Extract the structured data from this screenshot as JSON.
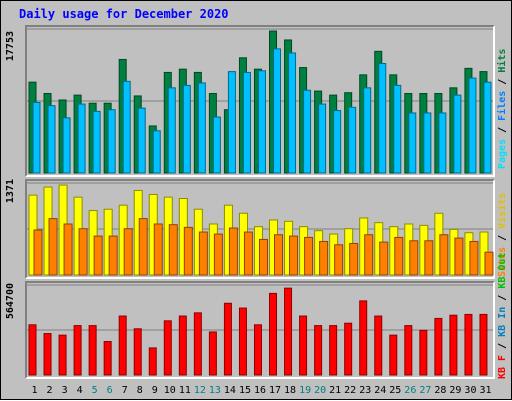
{
  "colors": {
    "background": "#c0c0c0",
    "title": "#0000ff",
    "hits": "#008040",
    "files": "#00c0ff",
    "pages": "#00e0ff",
    "visits": "#ffff00",
    "sites": "#ff8000",
    "kbytes": "#ff0000",
    "kb_in": "#0080c0",
    "kb_out": "#00c000",
    "weekend_label": "#008080",
    "weekday_label": "#000000"
  },
  "chart_data": {
    "type": "bar",
    "title": "Daily usage for December 2020",
    "categories": [
      "1",
      "2",
      "3",
      "4",
      "5",
      "6",
      "7",
      "8",
      "9",
      "10",
      "11",
      "12",
      "13",
      "14",
      "15",
      "16",
      "17",
      "18",
      "19",
      "20",
      "21",
      "22",
      "23",
      "24",
      "25",
      "26",
      "27",
      "28",
      "29",
      "30",
      "31"
    ],
    "weekend_days": [
      "5",
      "6",
      "12",
      "13",
      "19",
      "20",
      "26",
      "27"
    ],
    "panels": [
      {
        "ylabel": "17753",
        "ymax": 17753,
        "legend": [
          "Hits",
          "Files",
          "Pages"
        ],
        "series": [
          {
            "name": "Hits",
            "color": "#008040",
            "values": [
              11200,
              9800,
              9000,
              9600,
              8600,
              8600,
              14000,
              9500,
              5800,
              12400,
              12800,
              12400,
              9800,
              7800,
              14200,
              12800,
              17500,
              16400,
              13000,
              10100,
              9600,
              9900,
              12100,
              15000,
              12100,
              9800,
              9800,
              9800,
              10500,
              12900,
              12500
            ]
          },
          {
            "name": "Files",
            "color": "#00c0ff",
            "values": [
              8700,
              8300,
              6800,
              8500,
              7600,
              7800,
              11300,
              8000,
              5200,
              10500,
              10800,
              11100,
              6900,
              12500,
              12400,
              12600,
              15300,
              14800,
              10200,
              8500,
              7700,
              8100,
              10500,
              13500,
              10800,
              7400,
              7400,
              7400,
              9600,
              11700,
              11200
            ]
          },
          {
            "name": "Pages",
            "color": "#00e0ff",
            "values": [
              0,
              0,
              0,
              0,
              0,
              0,
              0,
              0,
              0,
              0,
              0,
              0,
              0,
              0,
              0,
              0,
              0,
              0,
              0,
              0,
              0,
              0,
              0,
              0,
              0,
              0,
              0,
              0,
              0,
              0,
              0
            ]
          }
        ]
      },
      {
        "ylabel": "1371",
        "ymax": 1371,
        "legend": [
          "Visits",
          "Sites"
        ],
        "series": [
          {
            "name": "Visits",
            "color": "#ffff00",
            "values": [
              1190,
              1310,
              1340,
              1160,
              960,
              980,
              1040,
              1260,
              1200,
              1160,
              1140,
              980,
              760,
              1040,
              920,
              720,
              820,
              800,
              720,
              660,
              610,
              690,
              850,
              780,
              720,
              760,
              740,
              920,
              680,
              630,
              640
            ]
          },
          {
            "name": "Sites",
            "color": "#ff8000",
            "values": [
              670,
              840,
              760,
              690,
              580,
              580,
              690,
              840,
              760,
              750,
              710,
              640,
              610,
              700,
              640,
              530,
              600,
              580,
              560,
              500,
              450,
              470,
              600,
              490,
              560,
              510,
              510,
              600,
              550,
              500,
              340
            ]
          }
        ]
      },
      {
        "ylabel": "564700",
        "ymax": 564700,
        "legend": [
          "KBytes",
          "KB In",
          "KB Out"
        ],
        "series": [
          {
            "name": "KBytes",
            "color": "#ff0000",
            "values": [
              315000,
              260000,
              250000,
              310000,
              310000,
              210000,
              370000,
              290000,
              170000,
              340000,
              370000,
              390000,
              270000,
              450000,
              420000,
              315000,
              512000,
              545000,
              370000,
              310000,
              310000,
              325000,
              465000,
              370000,
              250000,
              310000,
              280000,
              355000,
              375000,
              380000,
              380000
            ]
          },
          {
            "name": "KB In",
            "color": "#0080c0",
            "values": [
              0,
              0,
              0,
              0,
              0,
              0,
              0,
              0,
              0,
              0,
              0,
              0,
              0,
              0,
              0,
              0,
              0,
              0,
              0,
              0,
              0,
              0,
              0,
              0,
              0,
              0,
              0,
              0,
              0,
              0,
              0
            ]
          },
          {
            "name": "KB Out",
            "color": "#00c000",
            "values": [
              0,
              0,
              0,
              0,
              0,
              0,
              0,
              0,
              0,
              0,
              0,
              0,
              0,
              0,
              0,
              0,
              0,
              0,
              0,
              0,
              0,
              0,
              0,
              0,
              0,
              0,
              0,
              0,
              0,
              0,
              0
            ]
          }
        ]
      }
    ],
    "grid": true
  },
  "legend_text": {
    "top": {
      "pages": "Pages",
      "sep1": " / ",
      "files": "Files",
      "sep2": " / ",
      "hits": "Hits"
    },
    "middle": {
      "sites": "Sites",
      "sep1": " / ",
      "visits": "Visits"
    },
    "bottom": {
      "kbf": "KB F",
      "sep1": " / ",
      "kbin": "KB In",
      "sep2": " / ",
      "kbout": "KB Out"
    }
  }
}
